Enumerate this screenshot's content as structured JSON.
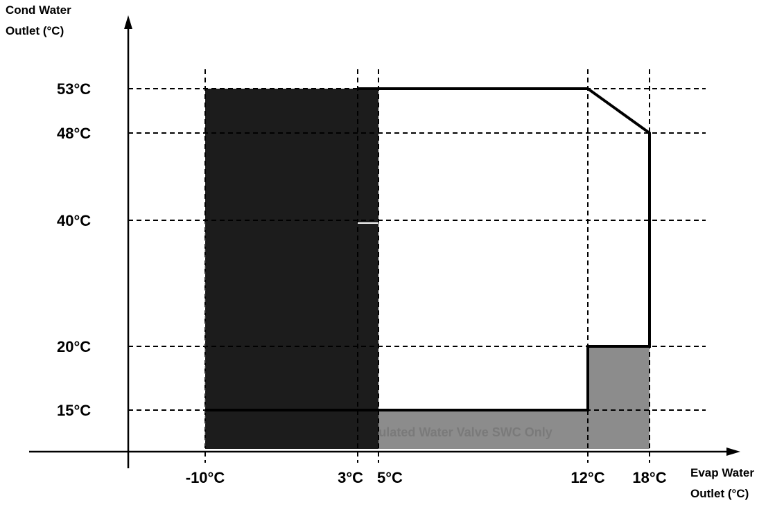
{
  "chart_data": {
    "type": "area",
    "ylabel": [
      "Cond Water",
      "Outlet (°C)"
    ],
    "xlabel": [
      "Evap Water",
      "Outlet (°C)"
    ],
    "x_ticks": [
      {
        "value": -10,
        "label": "-10°C"
      },
      {
        "value": 3,
        "label": "3°C"
      },
      {
        "value": 5,
        "label": "5°C"
      },
      {
        "value": 12,
        "label": "12°C"
      },
      {
        "value": 18,
        "label": "18°C"
      }
    ],
    "y_ticks": [
      {
        "value": 53,
        "label": "53°C"
      },
      {
        "value": 48,
        "label": "48°C"
      },
      {
        "value": 40,
        "label": "40°C"
      },
      {
        "value": 20,
        "label": "20°C"
      },
      {
        "value": 15,
        "label": "15°C"
      }
    ],
    "regions": [
      {
        "id": "black-region",
        "polygon": [
          [
            -10,
            11
          ],
          [
            -10,
            53
          ],
          [
            5,
            53
          ],
          [
            5,
            11
          ]
        ],
        "color": "#1c1c1c"
      },
      {
        "id": "gray-region",
        "polygon": [
          [
            5,
            11
          ],
          [
            5,
            15
          ],
          [
            12,
            15
          ],
          [
            12,
            20
          ],
          [
            18,
            20
          ],
          [
            18,
            11
          ]
        ],
        "color": "#8c8c8c"
      }
    ],
    "envelope": [
      [
        3,
        53
      ],
      [
        12,
        53
      ],
      [
        18,
        48
      ],
      [
        18,
        20
      ],
      [
        12,
        20
      ],
      [
        12,
        15
      ],
      [
        -10,
        15
      ]
    ],
    "annotation": {
      "text": "ulated Water Valve SWC Only",
      "x": 5.1,
      "y": 12.7
    }
  }
}
